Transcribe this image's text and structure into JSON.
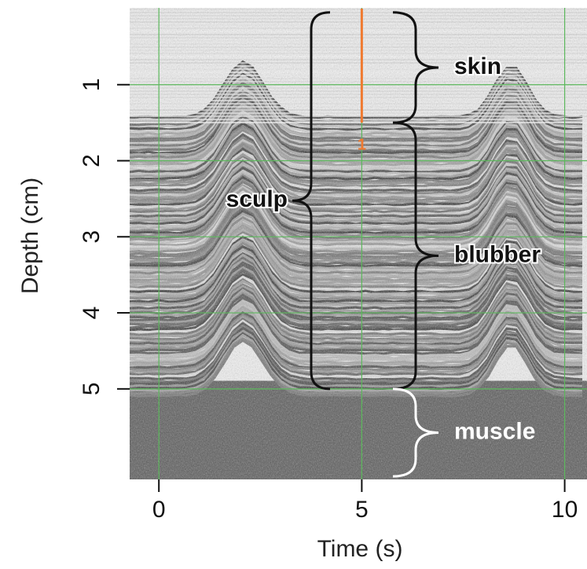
{
  "chart_data": {
    "type": "image",
    "x_label": "Time (s)",
    "y_label": "Depth (cm)",
    "xlim": [
      -0.72,
      10.55
    ],
    "xticks": [
      0,
      5,
      10
    ],
    "ylim": [
      6.19,
      -0.01
    ],
    "yticks": [
      1,
      2,
      3,
      4,
      5
    ],
    "grid": true,
    "grid_color": "#5cb85c",
    "marker": {
      "x": 5,
      "range": [
        0,
        1.5
      ],
      "label": "1",
      "label_depth": 1.8,
      "color": "#f07a30"
    },
    "annotations": [
      {
        "text": "skin",
        "range": [
          0.05,
          1.5
        ],
        "side": "right",
        "color": "#111111"
      },
      {
        "text": "blubber",
        "range": [
          1.5,
          5
        ],
        "side": "right",
        "color": "#111111"
      },
      {
        "text": "muscle",
        "range": [
          5,
          6.15
        ],
        "side": "right",
        "color": "#ffffff"
      },
      {
        "text": "sculp",
        "range": [
          0.05,
          5
        ],
        "side": "left",
        "color": "#111111"
      }
    ]
  }
}
